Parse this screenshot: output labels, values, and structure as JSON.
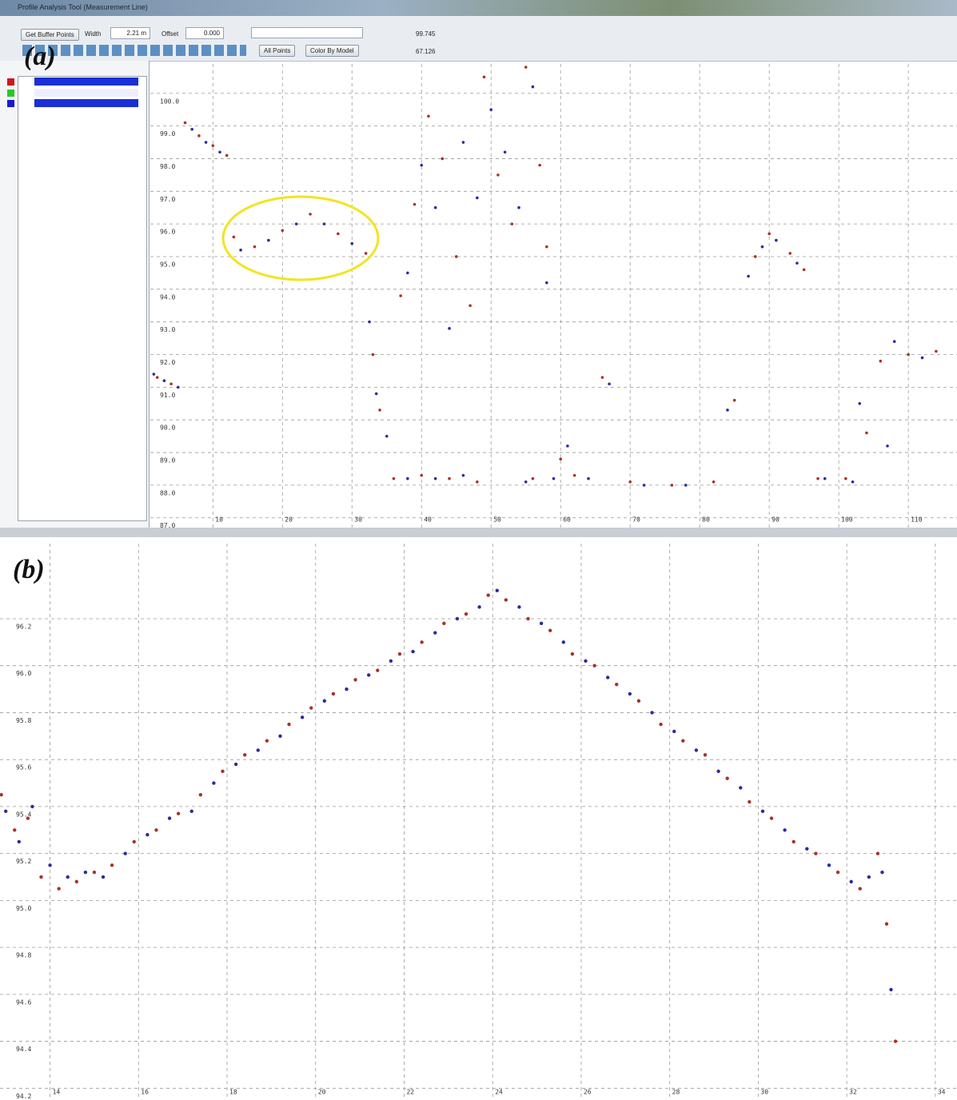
{
  "window": {
    "title": "Profile Analysis Tool (Measurement Line)"
  },
  "toolbar": {
    "button": "Get Buffer Points",
    "width_label": "Width",
    "width_value": "2.21 m",
    "offset_label": "Offset",
    "offset_value": "0.000",
    "readout_1": "99.745",
    "point_filter": "All Points",
    "color_mode": "Color By Model",
    "readout_2": "67.126"
  },
  "chart_data": [
    {
      "type": "scatter",
      "panel_label": "(a)",
      "grid": true,
      "xlim": [
        1,
        117
      ],
      "ylim": [
        86.7,
        100.9
      ],
      "xticks": [
        10,
        20,
        30,
        40,
        50,
        60,
        70,
        80,
        90,
        100,
        110
      ],
      "yticks": [
        {
          "value": 100,
          "label": "100.0"
        },
        {
          "value": 99,
          "label": "99.0"
        },
        {
          "value": 98,
          "label": "98.0"
        },
        {
          "value": 97,
          "label": "97.0"
        },
        {
          "value": 96,
          "label": "96.0"
        },
        {
          "value": 95,
          "label": "95.0"
        },
        {
          "value": 94,
          "label": "94.0"
        },
        {
          "value": 93,
          "label": "93.0"
        },
        {
          "value": 92,
          "label": "92.0"
        },
        {
          "value": 91,
          "label": "91.0"
        },
        {
          "value": 90,
          "label": "90.0"
        },
        {
          "value": 89,
          "label": "89.0"
        },
        {
          "value": 88,
          "label": "88.0"
        },
        {
          "value": 87,
          "label": "87.0"
        }
      ],
      "series": [
        {
          "color": "#a8322a",
          "x": [
            2,
            4,
            6,
            8,
            10,
            12,
            13,
            16,
            20,
            24,
            28,
            32,
            33,
            34,
            36,
            40,
            44,
            48,
            37,
            39,
            41,
            43,
            45,
            47,
            49,
            51,
            53,
            55,
            57,
            58,
            56,
            60,
            62,
            66,
            70,
            76,
            82,
            85,
            88,
            90,
            93,
            95,
            97,
            101,
            104,
            106,
            110,
            114
          ],
          "values": [
            91.3,
            91.1,
            99.1,
            98.7,
            98.4,
            98.1,
            95.6,
            95.3,
            95.8,
            96.3,
            95.7,
            95.1,
            92.0,
            90.3,
            88.2,
            88.3,
            88.2,
            88.1,
            93.8,
            96.6,
            99.3,
            98.0,
            95.0,
            93.5,
            100.5,
            97.5,
            96.0,
            100.8,
            97.8,
            95.3,
            88.2,
            88.8,
            88.3,
            91.3,
            88.1,
            88.0,
            88.1,
            90.6,
            95.0,
            95.7,
            95.1,
            94.6,
            88.2,
            88.2,
            89.6,
            91.8,
            92.0,
            92.1
          ]
        },
        {
          "color": "#2a2d9e",
          "x": [
            1.5,
            3,
            5,
            7,
            9,
            11,
            14,
            18,
            22,
            26,
            30,
            32.5,
            33.5,
            35,
            38,
            42,
            46,
            38,
            40,
            42,
            44,
            46,
            48,
            50,
            52,
            54,
            56,
            58,
            55,
            59,
            61,
            64,
            67,
            72,
            78,
            84,
            87,
            89,
            91,
            94,
            98,
            102,
            103,
            107,
            108,
            112
          ],
          "values": [
            91.4,
            91.2,
            91.0,
            98.9,
            98.5,
            98.2,
            95.2,
            95.5,
            96.0,
            96.0,
            95.4,
            93.0,
            90.8,
            89.5,
            88.2,
            88.2,
            88.3,
            94.5,
            97.8,
            96.5,
            92.8,
            98.5,
            96.8,
            99.5,
            98.2,
            96.5,
            100.2,
            94.2,
            88.1,
            88.2,
            89.2,
            88.2,
            91.1,
            88.0,
            88.0,
            90.3,
            94.4,
            95.3,
            95.5,
            94.8,
            88.2,
            88.1,
            90.5,
            89.2,
            92.4,
            91.9
          ]
        }
      ]
    },
    {
      "type": "scatter",
      "panel_label": "(b)",
      "grid": true,
      "xlim": [
        12.87,
        34.49
      ],
      "ylim": [
        94.15,
        96.52
      ],
      "xticks": [
        14,
        16,
        18,
        20,
        22,
        24,
        26,
        28,
        30,
        32,
        34
      ],
      "yticks": [
        96.2,
        {
          "value": 96,
          "label": "96.0"
        },
        95.8,
        95.6,
        95.4,
        95.2,
        {
          "value": 95,
          "label": "95.0"
        },
        94.8,
        94.6,
        94.4,
        94.2
      ],
      "series": [
        {
          "color": "#a8322a",
          "x": [
            12.9,
            13.2,
            13.5,
            13.8,
            14.2,
            14.6,
            15.0,
            15.4,
            15.9,
            16.4,
            16.9,
            17.4,
            17.9,
            18.4,
            18.9,
            19.4,
            19.9,
            20.4,
            20.9,
            21.4,
            21.9,
            22.4,
            22.9,
            23.4,
            23.9,
            24.3,
            24.8,
            25.3,
            25.8,
            26.3,
            26.8,
            27.3,
            27.8,
            28.3,
            28.8,
            29.3,
            29.8,
            30.3,
            30.8,
            31.3,
            31.8,
            32.3,
            32.7,
            32.9,
            33.1
          ],
          "values": [
            95.45,
            95.3,
            95.35,
            95.1,
            95.05,
            95.08,
            95.12,
            95.15,
            95.25,
            95.3,
            95.37,
            95.45,
            95.55,
            95.62,
            95.68,
            95.75,
            95.82,
            95.88,
            95.94,
            95.98,
            96.05,
            96.1,
            96.18,
            96.22,
            96.3,
            96.28,
            96.2,
            96.15,
            96.05,
            96.0,
            95.92,
            95.85,
            95.75,
            95.68,
            95.62,
            95.52,
            95.42,
            95.35,
            95.25,
            95.2,
            95.12,
            95.05,
            95.2,
            94.9,
            94.4
          ]
        },
        {
          "color": "#2a2d9e",
          "x": [
            13.0,
            13.3,
            13.6,
            14.0,
            14.4,
            14.8,
            15.2,
            15.7,
            16.2,
            16.7,
            17.2,
            17.7,
            18.2,
            18.7,
            19.2,
            19.7,
            20.2,
            20.7,
            21.2,
            21.7,
            22.2,
            22.7,
            23.2,
            23.7,
            24.1,
            24.6,
            25.1,
            25.6,
            26.1,
            26.6,
            27.1,
            27.6,
            28.1,
            28.6,
            29.1,
            29.6,
            30.1,
            30.6,
            31.1,
            31.6,
            32.1,
            32.5,
            32.8,
            33.0
          ],
          "values": [
            95.38,
            95.25,
            95.4,
            95.15,
            95.1,
            95.12,
            95.1,
            95.2,
            95.28,
            95.35,
            95.38,
            95.5,
            95.58,
            95.64,
            95.7,
            95.78,
            95.85,
            95.9,
            95.96,
            96.02,
            96.06,
            96.14,
            96.2,
            96.25,
            96.32,
            96.25,
            96.18,
            96.1,
            96.02,
            95.95,
            95.88,
            95.8,
            95.72,
            95.64,
            95.55,
            95.48,
            95.38,
            95.3,
            95.22,
            95.15,
            95.08,
            95.1,
            95.12,
            94.62
          ]
        }
      ]
    }
  ]
}
